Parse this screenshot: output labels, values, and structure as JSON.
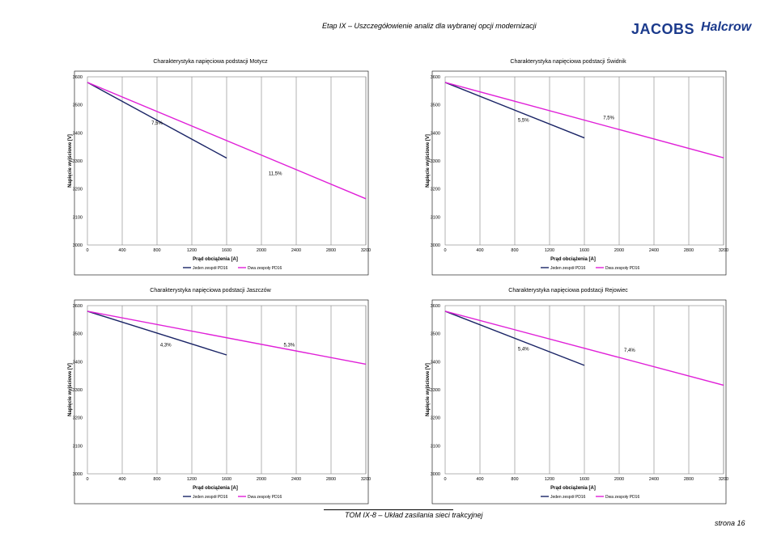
{
  "header": {
    "title": "Etap IX – Uszczegółowienie analiz dla wybranej opcji modernizacji",
    "logo_jacobs": "JACOBS",
    "logo_halcrow": "Halcrow"
  },
  "footer": {
    "title": "TOM IX-8 – Układ zasilania sieci trakcyjnej",
    "page": "strona 16"
  },
  "colors": {
    "jeden": "#1a2466",
    "dwa": "#e020d8",
    "grid": "#808080"
  },
  "chart_data": [
    {
      "type": "line",
      "title": "Charakterystyka napięciowa podstacji Motycz",
      "xlabel": "Prąd obciążenia [A]",
      "ylabel": "Napięcie wyjściowe [V]",
      "xlim": [
        0,
        3200
      ],
      "ylim": [
        3000,
        3600
      ],
      "xticks": [
        0,
        400,
        800,
        1200,
        1600,
        2000,
        2400,
        2800,
        3200
      ],
      "yticks": [
        3000,
        3100,
        3200,
        3300,
        3400,
        3500,
        3600
      ],
      "series": [
        {
          "name": "Jeden zespół PD16",
          "x": [
            0,
            1600
          ],
          "y": [
            3580,
            3310
          ]
        },
        {
          "name": "Dwa zespoły PD16",
          "x": [
            0,
            3200
          ],
          "y": [
            3580,
            3165
          ]
        }
      ],
      "annotations": [
        {
          "text": "7,5%",
          "x": 800,
          "y": 3430
        },
        {
          "text": "11,5%",
          "x": 2160,
          "y": 3250
        }
      ],
      "legend": "bottom"
    },
    {
      "type": "line",
      "title": "Charakterystyka napięciowa podstacji Świdnik",
      "xlabel": "Prąd obciążenia [A]",
      "ylabel": "Napięcie wyjściowe [V]",
      "xlim": [
        0,
        3200
      ],
      "ylim": [
        3000,
        3600
      ],
      "xticks": [
        0,
        400,
        800,
        1200,
        1600,
        2000,
        2400,
        2800,
        3200
      ],
      "yticks": [
        3000,
        3100,
        3200,
        3300,
        3400,
        3500,
        3600
      ],
      "series": [
        {
          "name": "Jeden zespół PD16",
          "x": [
            0,
            1600
          ],
          "y": [
            3580,
            3382
          ]
        },
        {
          "name": "Dwa zespoły PD16",
          "x": [
            0,
            3200
          ],
          "y": [
            3580,
            3311
          ]
        }
      ],
      "annotations": [
        {
          "text": "5,5%",
          "x": 900,
          "y": 3440
        },
        {
          "text": "7,5%",
          "x": 1880,
          "y": 3448
        }
      ],
      "legend": "bottom"
    },
    {
      "type": "line",
      "title": "Charakterystyka napięciowa podstacji Jaszczów",
      "xlabel": "Prąd obciążenia [A]",
      "ylabel": "Napięcie wyjściowe [V]",
      "xlim": [
        0,
        3200
      ],
      "ylim": [
        3000,
        3600
      ],
      "xticks": [
        0,
        400,
        800,
        1200,
        1600,
        2000,
        2400,
        2800,
        3200
      ],
      "yticks": [
        3000,
        3100,
        3200,
        3300,
        3400,
        3500,
        3600
      ],
      "series": [
        {
          "name": "Jeden zespół PD16",
          "x": [
            0,
            1600
          ],
          "y": [
            3580,
            3424
          ]
        },
        {
          "name": "Dwa zespoły PD16",
          "x": [
            0,
            3200
          ],
          "y": [
            3580,
            3391
          ]
        }
      ],
      "annotations": [
        {
          "text": "4,3%",
          "x": 900,
          "y": 3455
        },
        {
          "text": "5,3%",
          "x": 2320,
          "y": 3455
        }
      ],
      "legend": "bottom"
    },
    {
      "type": "line",
      "title": "Charakterystyka napięciowa podstacji Rejowiec",
      "xlabel": "Prąd obciążenia [A]",
      "ylabel": "Napięcie wyjściowe [V]",
      "xlim": [
        0,
        3200
      ],
      "ylim": [
        3000,
        3600
      ],
      "xticks": [
        0,
        400,
        800,
        1200,
        1600,
        2000,
        2400,
        2800,
        3200
      ],
      "yticks": [
        3000,
        3100,
        3200,
        3300,
        3400,
        3500,
        3600
      ],
      "series": [
        {
          "name": "Jeden zespół PD16",
          "x": [
            0,
            1600
          ],
          "y": [
            3580,
            3387
          ]
        },
        {
          "name": "Dwa zespoły PD16",
          "x": [
            0,
            3200
          ],
          "y": [
            3580,
            3316
          ]
        }
      ],
      "annotations": [
        {
          "text": "5,4%",
          "x": 900,
          "y": 3440
        },
        {
          "text": "7,4%",
          "x": 2120,
          "y": 3436
        }
      ],
      "legend": "bottom"
    }
  ]
}
